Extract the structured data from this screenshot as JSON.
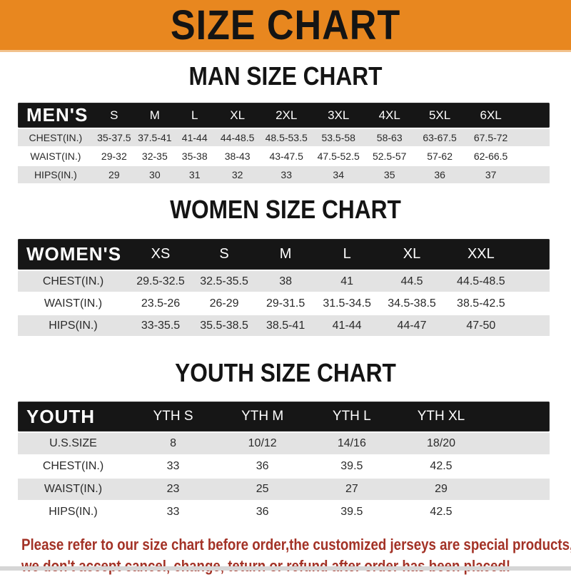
{
  "banner": {
    "title": "SIZE CHART"
  },
  "colors": {
    "banner_orange": "#E8871F",
    "header_black": "#161616",
    "row_gray": "#E3E3E3",
    "notice_red": "#A33226"
  },
  "sections": [
    {
      "heading": "MAN SIZE CHART",
      "table": {
        "label": "MEN'S",
        "columns": [
          "S",
          "M",
          "L",
          "XL",
          "2XL",
          "3XL",
          "4XL",
          "5XL",
          "6XL"
        ],
        "rows": [
          {
            "label": "CHEST(IN.)",
            "values": [
              "35-37.5",
              "37.5-41",
              "41-44",
              "44-48.5",
              "48.5-53.5",
              "53.5-58",
              "58-63",
              "63-67.5",
              "67.5-72"
            ]
          },
          {
            "label": "WAIST(IN.)",
            "values": [
              "29-32",
              "32-35",
              "35-38",
              "38-43",
              "43-47.5",
              "47.5-52.5",
              "52.5-57",
              "57-62",
              "62-66.5"
            ]
          },
          {
            "label": "HIPS(IN.)",
            "values": [
              "29",
              "30",
              "31",
              "32",
              "33",
              "34",
              "35",
              "36",
              "37"
            ]
          }
        ]
      }
    },
    {
      "heading": "WOMEN SIZE CHART",
      "table": {
        "label": "WOMEN'S",
        "columns": [
          "XS",
          "S",
          "M",
          "L",
          "XL",
          "XXL"
        ],
        "rows": [
          {
            "label": "CHEST(IN.)",
            "values": [
              "29.5-32.5",
              "32.5-35.5",
              "38",
              "41",
              "44.5",
              "44.5-48.5"
            ]
          },
          {
            "label": "WAIST(IN.)",
            "values": [
              "23.5-26",
              "26-29",
              "29-31.5",
              "31.5-34.5",
              "34.5-38.5",
              "38.5-42.5"
            ]
          },
          {
            "label": "HIPS(IN.)",
            "values": [
              "33-35.5",
              "35.5-38.5",
              "38.5-41",
              "41-44",
              "44-47",
              "47-50"
            ]
          }
        ]
      }
    },
    {
      "heading": "YOUTH SIZE CHART",
      "table": {
        "label": "YOUTH",
        "columns": [
          "YTH S",
          "YTH M",
          "YTH L",
          "YTH XL"
        ],
        "rows": [
          {
            "label": "U.S.SIZE",
            "values": [
              "8",
              "10/12",
              "14/16",
              "18/20"
            ]
          },
          {
            "label": "CHEST(IN.)",
            "values": [
              "33",
              "36",
              "39.5",
              "42.5"
            ]
          },
          {
            "label": "WAIST(IN.)",
            "values": [
              "23",
              "25",
              "27",
              "29"
            ]
          },
          {
            "label": "HIPS(IN.)",
            "values": [
              "33",
              "36",
              "39.5",
              "42.5"
            ]
          }
        ]
      }
    }
  ],
  "footer": {
    "line1": "Please refer to our size chart before order,the customized jerseys are special products,",
    "line2": "we don't accept cancel, change, teturn or refund after order has been placed!"
  }
}
